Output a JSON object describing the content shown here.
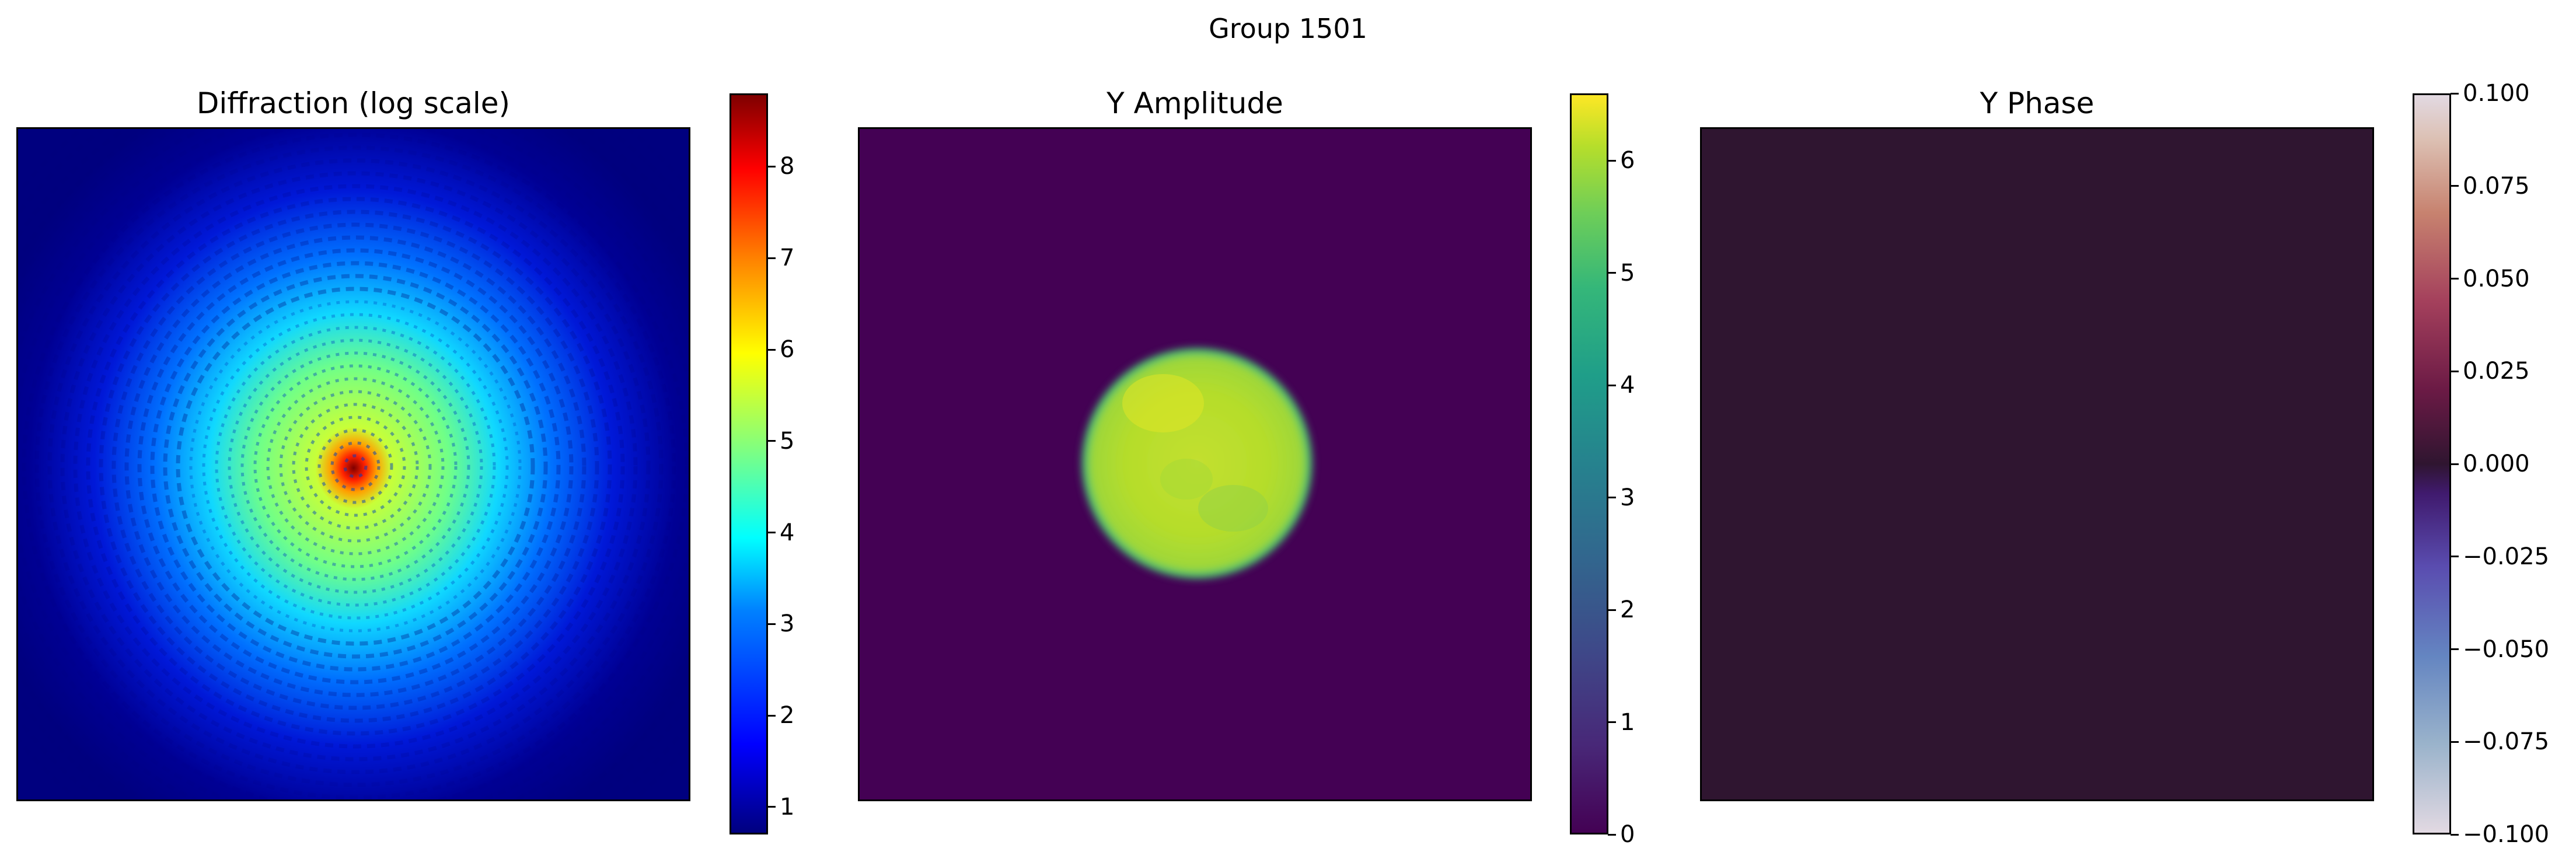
{
  "figure": {
    "title": "Group 1501"
  },
  "chart_data": [
    {
      "type": "heatmap",
      "title": "Diffraction (log scale)",
      "colormap": "jet",
      "colorbar": {
        "min": 0.7,
        "max": 8.8,
        "ticks": [
          1,
          2,
          3,
          4,
          5,
          6,
          7,
          8
        ],
        "tick_labels": [
          "1",
          "2",
          "3",
          "4",
          "5",
          "6",
          "7",
          "8"
        ]
      },
      "description_values": {
        "center_peak": 8.8,
        "background": 0.9
      },
      "colors": {
        "low": "#00007f",
        "high": "#7f0000"
      }
    },
    {
      "type": "heatmap",
      "title": "Y Amplitude",
      "colormap": "viridis",
      "colorbar": {
        "min": 0,
        "max": 6.6,
        "ticks": [
          0,
          1,
          2,
          3,
          4,
          5,
          6
        ],
        "tick_labels": [
          "0",
          "1",
          "2",
          "3",
          "4",
          "5",
          "6"
        ]
      },
      "description_values": {
        "disk_value": 5.8,
        "background": 0
      },
      "colors": {
        "low": "#440154",
        "high": "#fde725"
      }
    },
    {
      "type": "heatmap",
      "title": "Y Phase",
      "colormap": "twilight",
      "colorbar": {
        "min": -0.1,
        "max": 0.1,
        "ticks": [
          0.1,
          0.075,
          0.05,
          0.025,
          0.0,
          -0.025,
          -0.05,
          -0.075,
          -0.1
        ],
        "tick_labels": [
          "0.100",
          "0.075",
          "0.050",
          "0.025",
          "0.000",
          "−0.025",
          "−0.050",
          "−0.075",
          "−0.100"
        ]
      },
      "description_values": {
        "uniform_value": 0.0
      },
      "colors": {
        "uniform": "#2f1530"
      }
    }
  ]
}
